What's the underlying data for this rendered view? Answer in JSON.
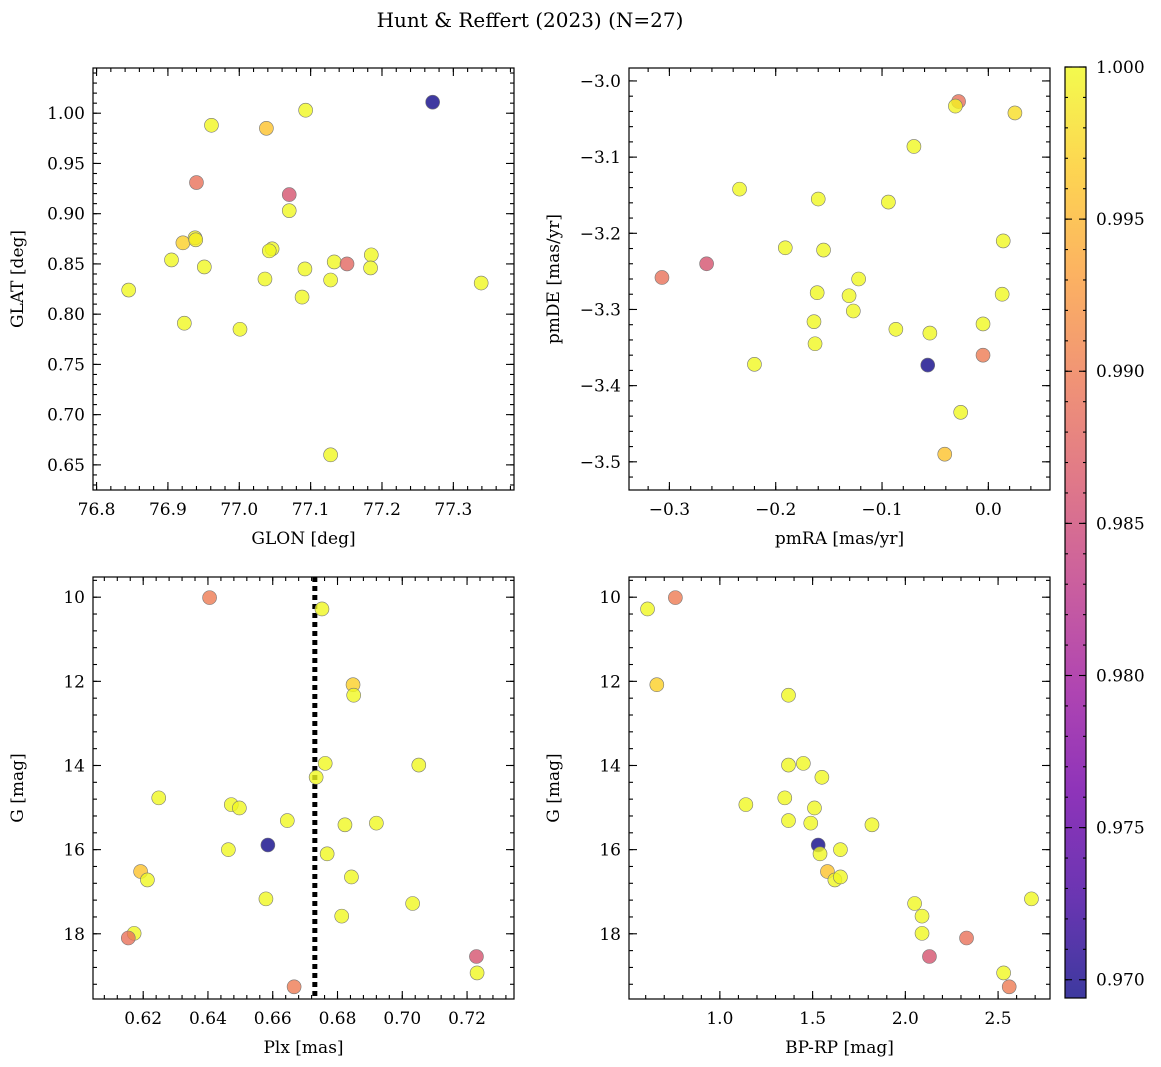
{
  "figure": {
    "title": "Hunt & Reffert (2023) (N=27)",
    "colormap": [
      "#0d0887",
      "#46039f",
      "#7201a8",
      "#9c179e",
      "#bd3786",
      "#d8576b",
      "#ed7953",
      "#fb9f3a",
      "#fdca26",
      "#f0f921"
    ],
    "point_alpha": 0.8,
    "colorbar": {
      "min": 0.9694,
      "max": 1.0,
      "ticks": [
        0.97,
        0.975,
        0.98,
        0.985,
        0.99,
        0.995,
        1.0
      ],
      "tick_labels": [
        "0.970",
        "0.975",
        "0.980",
        "0.985",
        "0.990",
        "0.995",
        "1.000"
      ]
    }
  },
  "chart_data": [
    {
      "type": "scatter",
      "name": "position",
      "xlabel": "GLON [deg]",
      "ylabel": "GLAT [deg]",
      "xlim": [
        76.795,
        77.385
      ],
      "ylim": [
        0.625,
        1.045
      ],
      "x_ticks": [
        76.8,
        76.9,
        77.0,
        77.1,
        77.2,
        77.3
      ],
      "x_tick_labels": [
        "76.8",
        "76.9",
        "77.0",
        "77.1",
        "77.2",
        "77.3"
      ],
      "y_ticks": [
        0.65,
        0.7,
        0.75,
        0.8,
        0.85,
        0.9,
        0.95,
        1.0
      ],
      "y_tick_labels": [
        "0.65",
        "0.70",
        "0.75",
        "0.80",
        "0.85",
        "0.90",
        "0.95",
        "1.00"
      ],
      "x_minor_step": 0.02,
      "y_minor_step": 0.01,
      "points": [
        {
          "x": 77.271,
          "y": 1.011,
          "c": 0.9695
        },
        {
          "x": 77.093,
          "y": 1.003,
          "c": 0.9999
        },
        {
          "x": 76.961,
          "y": 0.988,
          "c": 0.9998
        },
        {
          "x": 77.038,
          "y": 0.985,
          "c": 0.996
        },
        {
          "x": 76.94,
          "y": 0.931,
          "c": 0.989
        },
        {
          "x": 77.07,
          "y": 0.919,
          "c": 0.986
        },
        {
          "x": 77.07,
          "y": 0.903,
          "c": 0.9999
        },
        {
          "x": 76.938,
          "y": 0.876,
          "c": 0.9995
        },
        {
          "x": 76.921,
          "y": 0.871,
          "c": 0.997
        },
        {
          "x": 76.939,
          "y": 0.874,
          "c": 0.999
        },
        {
          "x": 77.046,
          "y": 0.865,
          "c": 0.9999
        },
        {
          "x": 77.042,
          "y": 0.863,
          "c": 0.9999
        },
        {
          "x": 76.905,
          "y": 0.854,
          "c": 0.9999
        },
        {
          "x": 76.951,
          "y": 0.847,
          "c": 0.9999
        },
        {
          "x": 77.133,
          "y": 0.852,
          "c": 0.9999
        },
        {
          "x": 77.151,
          "y": 0.85,
          "c": 0.988
        },
        {
          "x": 77.185,
          "y": 0.859,
          "c": 0.9999
        },
        {
          "x": 77.184,
          "y": 0.846,
          "c": 0.9999
        },
        {
          "x": 77.092,
          "y": 0.845,
          "c": 0.9999
        },
        {
          "x": 77.036,
          "y": 0.835,
          "c": 0.9999
        },
        {
          "x": 77.128,
          "y": 0.834,
          "c": 0.9999
        },
        {
          "x": 77.339,
          "y": 0.831,
          "c": 0.9999
        },
        {
          "x": 76.845,
          "y": 0.824,
          "c": 0.9999
        },
        {
          "x": 77.088,
          "y": 0.817,
          "c": 0.9999
        },
        {
          "x": 76.923,
          "y": 0.791,
          "c": 0.9999
        },
        {
          "x": 77.001,
          "y": 0.785,
          "c": 0.9999
        },
        {
          "x": 77.128,
          "y": 0.66,
          "c": 0.9999
        }
      ]
    },
    {
      "type": "scatter",
      "name": "proper-motion",
      "xlabel": "pmRA [mas/yr]",
      "ylabel": "pmDE [mas/yr]",
      "xlim": [
        -0.338,
        0.058
      ],
      "ylim": [
        -3.537,
        -2.983
      ],
      "x_ticks": [
        -0.3,
        -0.2,
        -0.1,
        0.0
      ],
      "x_tick_labels": [
        "−0.3",
        "−0.2",
        "−0.1",
        "0.0"
      ],
      "y_ticks": [
        -3.5,
        -3.4,
        -3.3,
        -3.2,
        -3.1,
        -3.0
      ],
      "y_tick_labels": [
        "−3.5",
        "−3.4",
        "−3.3",
        "−3.2",
        "−3.1",
        "−3.0"
      ],
      "x_minor_step": 0.02,
      "y_minor_step": 0.02,
      "points": [
        {
          "x": -0.028,
          "y": -3.027,
          "c": 0.989
        },
        {
          "x": -0.031,
          "y": -3.033,
          "c": 0.9995
        },
        {
          "x": 0.025,
          "y": -3.042,
          "c": 0.998
        },
        {
          "x": -0.07,
          "y": -3.086,
          "c": 0.9999
        },
        {
          "x": -0.234,
          "y": -3.142,
          "c": 0.9999
        },
        {
          "x": -0.16,
          "y": -3.155,
          "c": 0.9999
        },
        {
          "x": -0.094,
          "y": -3.159,
          "c": 0.9999
        },
        {
          "x": 0.014,
          "y": -3.21,
          "c": 0.9999
        },
        {
          "x": -0.191,
          "y": -3.219,
          "c": 0.9999
        },
        {
          "x": -0.155,
          "y": -3.222,
          "c": 0.9999
        },
        {
          "x": -0.307,
          "y": -3.258,
          "c": 0.989
        },
        {
          "x": -0.265,
          "y": -3.24,
          "c": 0.986
        },
        {
          "x": -0.122,
          "y": -3.26,
          "c": 0.9999
        },
        {
          "x": -0.161,
          "y": -3.278,
          "c": 0.9999
        },
        {
          "x": 0.013,
          "y": -3.28,
          "c": 0.9999
        },
        {
          "x": -0.131,
          "y": -3.282,
          "c": 0.9999
        },
        {
          "x": -0.127,
          "y": -3.302,
          "c": 0.9999
        },
        {
          "x": -0.164,
          "y": -3.316,
          "c": 0.9999
        },
        {
          "x": -0.005,
          "y": -3.319,
          "c": 0.9999
        },
        {
          "x": -0.087,
          "y": -3.326,
          "c": 0.9999
        },
        {
          "x": -0.055,
          "y": -3.331,
          "c": 0.9999
        },
        {
          "x": -0.163,
          "y": -3.345,
          "c": 0.9999
        },
        {
          "x": -0.005,
          "y": -3.36,
          "c": 0.99
        },
        {
          "x": -0.22,
          "y": -3.372,
          "c": 0.9999
        },
        {
          "x": -0.057,
          "y": -3.373,
          "c": 0.9695
        },
        {
          "x": -0.026,
          "y": -3.435,
          "c": 0.9999
        },
        {
          "x": -0.041,
          "y": -3.49,
          "c": 0.996
        }
      ]
    },
    {
      "type": "scatter",
      "name": "parallax-magnitude",
      "xlabel": "Plx [mas]",
      "ylabel": "G [mag]",
      "xlim": [
        0.6045,
        0.7345
      ],
      "ylim": [
        19.55,
        9.52
      ],
      "y_inverted": true,
      "vline": {
        "x": 0.673,
        "style": "dotted"
      },
      "x_ticks": [
        0.62,
        0.64,
        0.66,
        0.68,
        0.7,
        0.72
      ],
      "x_tick_labels": [
        "0.62",
        "0.64",
        "0.66",
        "0.68",
        "0.70",
        "0.72"
      ],
      "y_ticks": [
        10,
        12,
        14,
        16,
        18
      ],
      "y_tick_labels": [
        "10",
        "12",
        "14",
        "16",
        "18"
      ],
      "x_minor_step": 0.004,
      "y_minor_step": 0.4,
      "points": [
        {
          "x": 0.6405,
          "y": 10.01,
          "c": 0.99
        },
        {
          "x": 0.6752,
          "y": 10.28,
          "c": 0.9999
        },
        {
          "x": 0.6848,
          "y": 12.08,
          "c": 0.997
        },
        {
          "x": 0.685,
          "y": 12.33,
          "c": 0.9999
        },
        {
          "x": 0.6762,
          "y": 13.95,
          "c": 0.9999
        },
        {
          "x": 0.7051,
          "y": 13.99,
          "c": 0.9999
        },
        {
          "x": 0.6734,
          "y": 14.28,
          "c": 0.9999
        },
        {
          "x": 0.6248,
          "y": 14.77,
          "c": 0.9999
        },
        {
          "x": 0.6472,
          "y": 14.93,
          "c": 0.9999
        },
        {
          "x": 0.6497,
          "y": 15.01,
          "c": 0.9999
        },
        {
          "x": 0.6645,
          "y": 15.31,
          "c": 0.9999
        },
        {
          "x": 0.692,
          "y": 15.37,
          "c": 0.9999
        },
        {
          "x": 0.6823,
          "y": 15.41,
          "c": 0.9999
        },
        {
          "x": 0.6463,
          "y": 16.0,
          "c": 0.9999
        },
        {
          "x": 0.6585,
          "y": 15.89,
          "c": 0.9695
        },
        {
          "x": 0.6768,
          "y": 16.1,
          "c": 0.9999
        },
        {
          "x": 0.6192,
          "y": 16.52,
          "c": 0.996
        },
        {
          "x": 0.6213,
          "y": 16.72,
          "c": 0.9999
        },
        {
          "x": 0.6843,
          "y": 16.65,
          "c": 0.9999
        },
        {
          "x": 0.6579,
          "y": 17.17,
          "c": 0.9999
        },
        {
          "x": 0.7032,
          "y": 17.28,
          "c": 0.9999
        },
        {
          "x": 0.6813,
          "y": 17.58,
          "c": 0.9999
        },
        {
          "x": 0.6172,
          "y": 17.99,
          "c": 0.9999
        },
        {
          "x": 0.6154,
          "y": 18.1,
          "c": 0.989
        },
        {
          "x": 0.7229,
          "y": 18.54,
          "c": 0.986
        },
        {
          "x": 0.7231,
          "y": 18.93,
          "c": 0.9999
        },
        {
          "x": 0.6666,
          "y": 19.26,
          "c": 0.99
        }
      ]
    },
    {
      "type": "scatter",
      "name": "color-magnitude",
      "xlabel": "BP-RP [mag]",
      "ylabel": "G [mag]",
      "xlim": [
        0.51,
        2.78
      ],
      "ylim": [
        19.55,
        9.52
      ],
      "y_inverted": true,
      "x_ticks": [
        1.0,
        1.5,
        2.0,
        2.5
      ],
      "x_tick_labels": [
        "1.0",
        "1.5",
        "2.0",
        "2.5"
      ],
      "y_ticks": [
        10,
        12,
        14,
        16,
        18
      ],
      "y_tick_labels": [
        "10",
        "12",
        "14",
        "16",
        "18"
      ],
      "x_minor_step": 0.1,
      "y_minor_step": 0.4,
      "points": [
        {
          "x": 0.61,
          "y": 10.28,
          "c": 0.9999
        },
        {
          "x": 0.76,
          "y": 10.01,
          "c": 0.99
        },
        {
          "x": 0.66,
          "y": 12.08,
          "c": 0.997
        },
        {
          "x": 1.37,
          "y": 12.33,
          "c": 0.9999
        },
        {
          "x": 1.45,
          "y": 13.95,
          "c": 0.9999
        },
        {
          "x": 1.37,
          "y": 13.99,
          "c": 0.9999
        },
        {
          "x": 1.55,
          "y": 14.28,
          "c": 0.9999
        },
        {
          "x": 1.35,
          "y": 14.77,
          "c": 0.9999
        },
        {
          "x": 1.14,
          "y": 14.93,
          "c": 0.9999
        },
        {
          "x": 1.51,
          "y": 15.01,
          "c": 0.9999
        },
        {
          "x": 1.37,
          "y": 15.31,
          "c": 0.9999
        },
        {
          "x": 1.49,
          "y": 15.37,
          "c": 0.9999
        },
        {
          "x": 1.82,
          "y": 15.41,
          "c": 0.9999
        },
        {
          "x": 1.65,
          "y": 16.0,
          "c": 0.9999
        },
        {
          "x": 1.53,
          "y": 15.89,
          "c": 0.9695
        },
        {
          "x": 1.54,
          "y": 16.1,
          "c": 0.9999
        },
        {
          "x": 1.58,
          "y": 16.52,
          "c": 0.996
        },
        {
          "x": 1.62,
          "y": 16.72,
          "c": 0.9999
        },
        {
          "x": 1.65,
          "y": 16.65,
          "c": 0.9999
        },
        {
          "x": 2.68,
          "y": 17.17,
          "c": 0.9999
        },
        {
          "x": 2.05,
          "y": 17.28,
          "c": 0.9999
        },
        {
          "x": 2.09,
          "y": 17.58,
          "c": 0.9999
        },
        {
          "x": 2.09,
          "y": 17.99,
          "c": 0.9999
        },
        {
          "x": 2.33,
          "y": 18.1,
          "c": 0.989
        },
        {
          "x": 2.13,
          "y": 18.54,
          "c": 0.986
        },
        {
          "x": 2.53,
          "y": 18.93,
          "c": 0.9999
        },
        {
          "x": 2.56,
          "y": 19.26,
          "c": 0.99
        }
      ]
    }
  ]
}
